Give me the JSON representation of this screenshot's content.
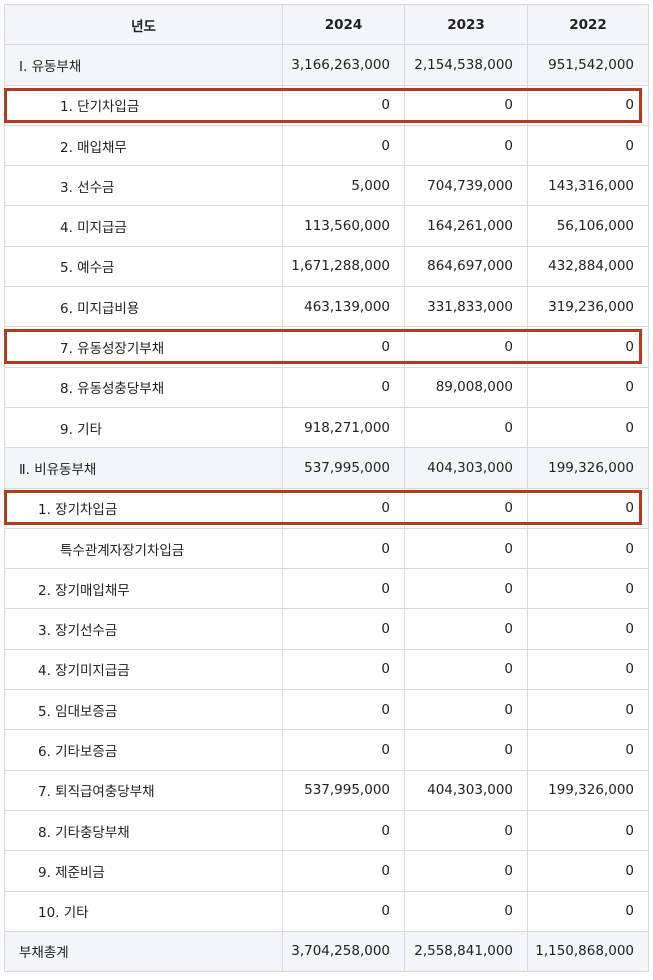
{
  "header": {
    "label_col": "년도",
    "years": [
      "2024",
      "2023",
      "2022"
    ]
  },
  "rows": [
    {
      "label": "Ⅰ. 유동부채",
      "values": [
        "3,166,263,000",
        "2,154,538,000",
        "951,542,000"
      ]
    },
    {
      "label": "1. 단기차입금",
      "values": [
        "0",
        "0",
        "0"
      ]
    },
    {
      "label": "2. 매입채무",
      "values": [
        "0",
        "0",
        "0"
      ]
    },
    {
      "label": "3. 선수금",
      "values": [
        "5,000",
        "704,739,000",
        "143,316,000"
      ]
    },
    {
      "label": "4. 미지급금",
      "values": [
        "113,560,000",
        "164,261,000",
        "56,106,000"
      ]
    },
    {
      "label": "5. 예수금",
      "values": [
        "1,671,288,000",
        "864,697,000",
        "432,884,000"
      ]
    },
    {
      "label": "6. 미지급비용",
      "values": [
        "463,139,000",
        "331,833,000",
        "319,236,000"
      ]
    },
    {
      "label": "7. 유동성장기부채",
      "values": [
        "0",
        "0",
        "0"
      ]
    },
    {
      "label": "8. 유동성충당부채",
      "values": [
        "0",
        "89,008,000",
        "0"
      ]
    },
    {
      "label": "9. 기타",
      "values": [
        "918,271,000",
        "0",
        "0"
      ]
    },
    {
      "label": "Ⅱ. 비유동부채",
      "values": [
        "537,995,000",
        "404,303,000",
        "199,326,000"
      ]
    },
    {
      "label": "1. 장기차입금",
      "values": [
        "0",
        "0",
        "0"
      ]
    },
    {
      "label": "특수관계자장기차입금",
      "values": [
        "0",
        "0",
        "0"
      ]
    },
    {
      "label": "2. 장기매입채무",
      "values": [
        "0",
        "0",
        "0"
      ]
    },
    {
      "label": "3. 장기선수금",
      "values": [
        "0",
        "0",
        "0"
      ]
    },
    {
      "label": "4. 장기미지급금",
      "values": [
        "0",
        "0",
        "0"
      ]
    },
    {
      "label": "5. 임대보증금",
      "values": [
        "0",
        "0",
        "0"
      ]
    },
    {
      "label": "6. 기타보증금",
      "values": [
        "0",
        "0",
        "0"
      ]
    },
    {
      "label": "7. 퇴직급여충당부채",
      "values": [
        "537,995,000",
        "404,303,000",
        "199,326,000"
      ]
    },
    {
      "label": "8. 기타충당부채",
      "values": [
        "0",
        "0",
        "0"
      ]
    },
    {
      "label": "9. 제준비금",
      "values": [
        "0",
        "0",
        "0"
      ]
    },
    {
      "label": "10. 기타",
      "values": [
        "0",
        "0",
        "0"
      ]
    },
    {
      "label": "부채총계",
      "values": [
        "3,704,258,000",
        "2,558,841,000",
        "1,150,868,000"
      ]
    }
  ],
  "highlighted_rows": [
    "1. 단기차입금",
    "7. 유동성장기부채",
    "1. 장기차입금"
  ],
  "colors": {
    "header_bg": "#f3f5f8",
    "border": "#dadada",
    "highlight": "#b33a1f"
  }
}
